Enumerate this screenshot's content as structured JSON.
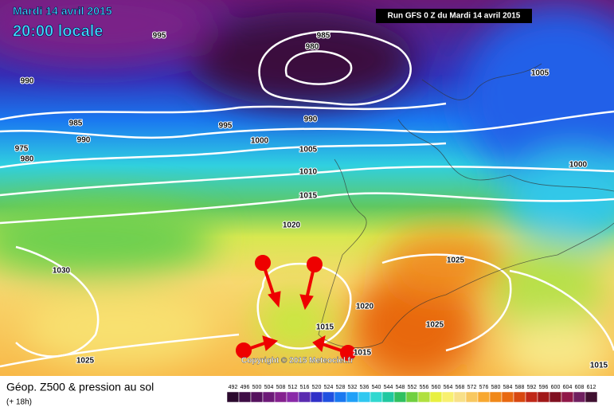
{
  "header": {
    "date": "Mardi 14 avril 2015",
    "time": "20:00 locale",
    "run": "Run GFS 0 Z du Mardi 14 avril 2015"
  },
  "isobars": [
    "995",
    "985",
    "980",
    "990",
    "1005",
    "985",
    "995",
    "990",
    "975",
    "990",
    "1000",
    "980",
    "1005",
    "1000",
    "1010",
    "1015",
    "1020",
    "1025",
    "1030",
    "1020",
    "1015",
    "1025",
    "1015",
    "1025",
    "1015"
  ],
  "copyright": "Copyright © 2015 Meteociel.fr",
  "legend": {
    "title": "Géop. Z500 & pression au sol",
    "lead": "(+ 18h)",
    "scale": [
      {
        "label": "492",
        "color": "#2b0a2e"
      },
      {
        "label": "496",
        "color": "#3e0d45"
      },
      {
        "label": "500",
        "color": "#55125e"
      },
      {
        "label": "504",
        "color": "#6d1a78"
      },
      {
        "label": "508",
        "color": "#85218f"
      },
      {
        "label": "512",
        "color": "#8a2aa8"
      },
      {
        "label": "516",
        "color": "#5a2bb0"
      },
      {
        "label": "520",
        "color": "#3030c8"
      },
      {
        "label": "524",
        "color": "#2050e0"
      },
      {
        "label": "528",
        "color": "#1a78f0"
      },
      {
        "label": "532",
        "color": "#20a0f8"
      },
      {
        "label": "536",
        "color": "#30c8f0"
      },
      {
        "label": "540",
        "color": "#30d8d0"
      },
      {
        "label": "544",
        "color": "#20c8a0"
      },
      {
        "label": "548",
        "color": "#30c060"
      },
      {
        "label": "552",
        "color": "#70d040"
      },
      {
        "label": "556",
        "color": "#b0e040"
      },
      {
        "label": "560",
        "color": "#e8f040"
      },
      {
        "label": "564",
        "color": "#f8f070"
      },
      {
        "label": "568",
        "color": "#f8e088"
      },
      {
        "label": "572",
        "color": "#f8c860"
      },
      {
        "label": "576",
        "color": "#f8a830"
      },
      {
        "label": "580",
        "color": "#f08818"
      },
      {
        "label": "584",
        "color": "#e86810"
      },
      {
        "label": "588",
        "color": "#d84810"
      },
      {
        "label": "592",
        "color": "#c02818"
      },
      {
        "label": "596",
        "color": "#a01818"
      },
      {
        "label": "600",
        "color": "#801020"
      },
      {
        "label": "604",
        "color": "#901848"
      },
      {
        "label": "608",
        "color": "#702060"
      },
      {
        "label": "612",
        "color": "#401030"
      }
    ]
  }
}
